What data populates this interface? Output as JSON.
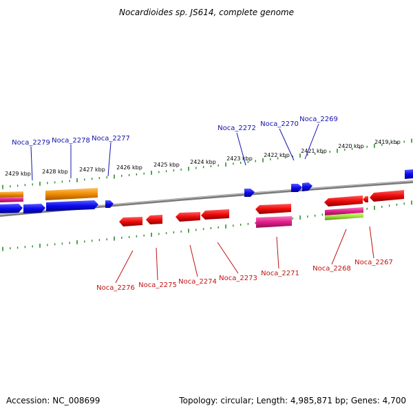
{
  "title": "Nocardioides sp. JS614, complete genome",
  "footer": {
    "accession": "Accession: NC_008699",
    "topology": "Topology: circular; Length: 4,985,871 bp; Genes: 4,700"
  },
  "kbp_labels": [
    "2429 kbp",
    "2428 kbp",
    "2427 kbp",
    "2426 kbp",
    "2425 kbp",
    "2424 kbp",
    "2423 kbp",
    "2422 kbp",
    "2421 kbp",
    "2420 kbp",
    "2419 kbp"
  ],
  "genes_top": [
    "Noca_2279",
    "Noca_2278",
    "Noca_2277",
    "Noca_2272",
    "Noca_2270",
    "Noca_2269"
  ],
  "genes_bottom": [
    "Noca_2276",
    "Noca_2275",
    "Noca_2274",
    "Noca_2273",
    "Noca_2271",
    "Noca_2268",
    "Noca_2267"
  ],
  "colors": {
    "forward_gene": "#0a0aee",
    "reverse_gene": "#ee0a0a",
    "orange_feature": "#f08a00",
    "magenta_feature": "#e0208a",
    "green_feature": "#a0e040",
    "backbone": "#7a7a7a",
    "ticks": "#2a8a2a",
    "label_top": "#1010b0",
    "label_bottom": "#c01010"
  }
}
